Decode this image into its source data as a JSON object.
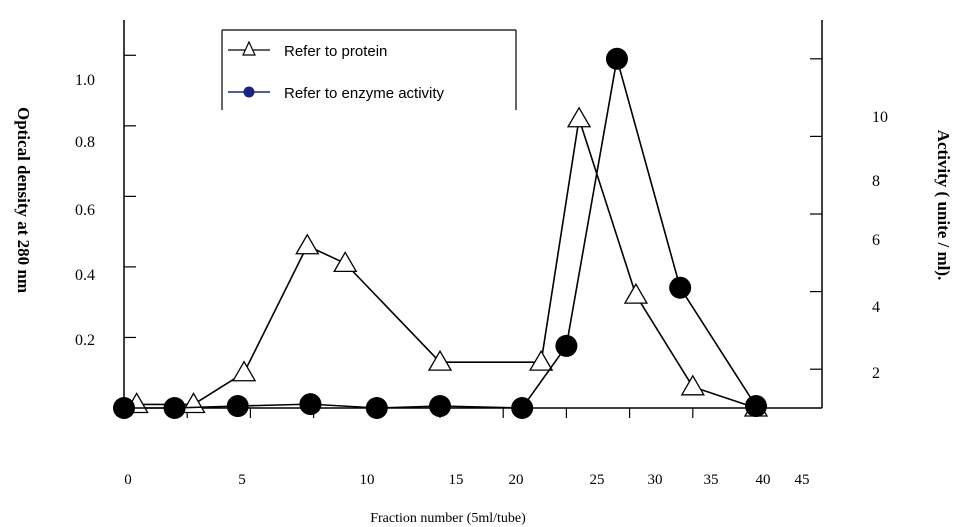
{
  "chart_data": {
    "type": "line",
    "title": "",
    "xlabel": "Fraction number (5ml/tube)",
    "ylabel_left": "Optical density at 280 nm",
    "ylabel_right": "Activity ( unite / ml).",
    "x_ticks": [
      {
        "label": "0",
        "pos": 0
      },
      {
        "label": "5",
        "pos": 1
      },
      {
        "label": "10",
        "pos": 2
      },
      {
        "label": "15",
        "pos": 3
      },
      {
        "label": "20",
        "pos": 4
      },
      {
        "label": "25",
        "pos": 5
      },
      {
        "label": "30",
        "pos": 6
      },
      {
        "label": "35",
        "pos": 7
      },
      {
        "label": "40",
        "pos": 8
      },
      {
        "label": "45",
        "pos": 9
      }
    ],
    "y_left_ticks": [
      "0.2",
      "0.4",
      "0.6",
      "0.8",
      "1.0"
    ],
    "y_left_tick_values": [
      0.2,
      0.4,
      0.6,
      0.8,
      1.0
    ],
    "y_left_range": [
      0,
      1.1
    ],
    "y_right_ticks": [
      "2",
      "4",
      "6",
      "8",
      "10"
    ],
    "y_right_tick_values": [
      2,
      4,
      6,
      8,
      10
    ],
    "y_right_range": [
      1,
      11
    ],
    "legend_placement": "top-center",
    "grid": false,
    "series": [
      {
        "name": "Refer to protein",
        "axis": "left",
        "marker": "open-triangle",
        "color": "#000000",
        "points": [
          {
            "x": 0.2,
            "y": 0.01
          },
          {
            "x": 1.1,
            "y": 0.01
          },
          {
            "x": 1.9,
            "y": 0.1
          },
          {
            "x": 2.9,
            "y": 0.46
          },
          {
            "x": 3.5,
            "y": 0.41
          },
          {
            "x": 5.0,
            "y": 0.13
          },
          {
            "x": 6.6,
            "y": 0.13
          },
          {
            "x": 7.2,
            "y": 0.82
          },
          {
            "x": 8.1,
            "y": 0.32
          },
          {
            "x": 9.0,
            "y": 0.06
          },
          {
            "x": 10.0,
            "y": 0.0
          }
        ]
      },
      {
        "name": "Refer to enzyme activity",
        "axis": "right",
        "marker": "filled-circle",
        "color": "#000000",
        "legend_marker_color": "#1a237e",
        "points": [
          {
            "x": 0.0,
            "y": 1.0
          },
          {
            "x": 0.8,
            "y": 1.0
          },
          {
            "x": 1.8,
            "y": 1.05
          },
          {
            "x": 2.95,
            "y": 1.1
          },
          {
            "x": 4.0,
            "y": 1.0
          },
          {
            "x": 5.0,
            "y": 1.05
          },
          {
            "x": 6.3,
            "y": 1.0
          },
          {
            "x": 7.0,
            "y": 2.6
          },
          {
            "x": 7.8,
            "y": 10.0
          },
          {
            "x": 8.8,
            "y": 4.1
          },
          {
            "x": 10.0,
            "y": 1.05
          }
        ]
      }
    ]
  }
}
